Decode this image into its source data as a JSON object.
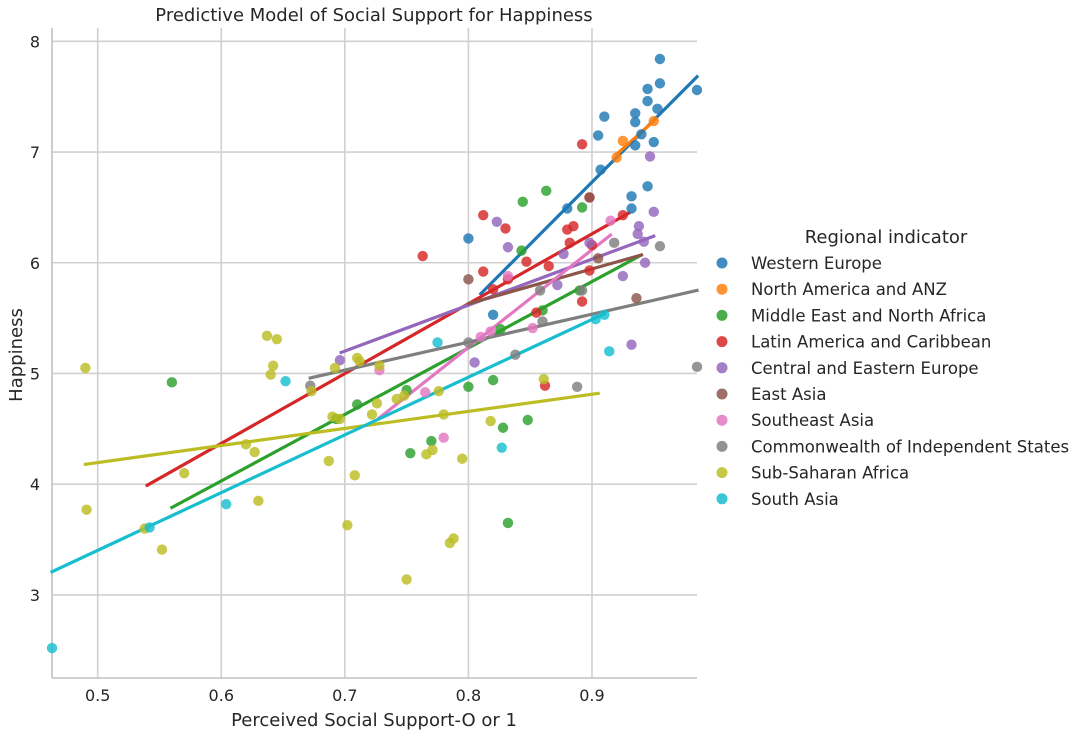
{
  "chart_data": {
    "type": "scatter",
    "title": "Predictive Model of Social Support for Happiness",
    "xlabel": "Perceived Social Support-O or 1",
    "ylabel": "Happiness",
    "xlim": [
      0.463,
      0.985
    ],
    "ylim": [
      2.25,
      8.12
    ],
    "x_ticks": [
      0.5,
      0.6,
      0.7,
      0.8,
      0.9
    ],
    "x_tick_labels": [
      "0.5",
      "0.6",
      "0.7",
      "0.8",
      "0.9"
    ],
    "y_ticks": [
      3,
      4,
      5,
      6,
      7,
      8
    ],
    "y_tick_labels": [
      "3",
      "4",
      "5",
      "6",
      "7",
      "8"
    ],
    "grid": true,
    "legend": {
      "title": "Regional indicator",
      "placement": "right"
    },
    "series": [
      {
        "name": "Western Europe",
        "color": "#1f77b4",
        "trend": [
          [
            0.81,
            5.72
          ],
          [
            0.985,
            7.68
          ]
        ],
        "points": [
          [
            0.955,
            7.84
          ],
          [
            0.955,
            7.62
          ],
          [
            0.945,
            7.57
          ],
          [
            0.945,
            7.46
          ],
          [
            0.985,
            7.56
          ],
          [
            0.953,
            7.39
          ],
          [
            0.935,
            7.35
          ],
          [
            0.91,
            7.32
          ],
          [
            0.935,
            7.27
          ],
          [
            0.905,
            7.15
          ],
          [
            0.94,
            7.16
          ],
          [
            0.95,
            7.09
          ],
          [
            0.935,
            7.06
          ],
          [
            0.907,
            6.84
          ],
          [
            0.945,
            6.69
          ],
          [
            0.932,
            6.6
          ],
          [
            0.932,
            6.49
          ],
          [
            0.88,
            6.49
          ],
          [
            0.8,
            6.22
          ],
          [
            0.82,
            5.53
          ]
        ]
      },
      {
        "name": "North America and ANZ",
        "color": "#ff7f0e",
        "trend": [
          [
            0.92,
            6.98
          ],
          [
            0.95,
            7.28
          ]
        ],
        "points": [
          [
            0.925,
            7.1
          ],
          [
            0.95,
            7.28
          ],
          [
            0.92,
            6.95
          ]
        ]
      },
      {
        "name": "Middle East and North Africa",
        "color": "#2ca02c",
        "trend": [
          [
            0.56,
            3.79
          ],
          [
            0.94,
            6.07
          ]
        ],
        "points": [
          [
            0.863,
            6.65
          ],
          [
            0.844,
            6.55
          ],
          [
            0.892,
            6.5
          ],
          [
            0.843,
            6.11
          ],
          [
            0.89,
            5.75
          ],
          [
            0.86,
            5.57
          ],
          [
            0.826,
            5.4
          ],
          [
            0.56,
            4.92
          ],
          [
            0.8,
            4.88
          ],
          [
            0.82,
            4.94
          ],
          [
            0.75,
            4.85
          ],
          [
            0.71,
            4.72
          ],
          [
            0.693,
            4.59
          ],
          [
            0.77,
            4.39
          ],
          [
            0.753,
            4.28
          ],
          [
            0.828,
            4.51
          ],
          [
            0.848,
            4.58
          ],
          [
            0.832,
            3.65
          ]
        ]
      },
      {
        "name": "Latin America and Caribbean",
        "color": "#d62728",
        "trend": [
          [
            0.54,
            3.99
          ],
          [
            0.93,
            6.45
          ]
        ],
        "points": [
          [
            0.892,
            7.07
          ],
          [
            0.898,
            6.59
          ],
          [
            0.812,
            6.43
          ],
          [
            0.83,
            6.31
          ],
          [
            0.88,
            6.3
          ],
          [
            0.885,
            6.33
          ],
          [
            0.925,
            6.43
          ],
          [
            0.882,
            6.18
          ],
          [
            0.9,
            6.16
          ],
          [
            0.763,
            6.06
          ],
          [
            0.847,
            6.01
          ],
          [
            0.865,
            5.97
          ],
          [
            0.812,
            5.92
          ],
          [
            0.898,
            5.93
          ],
          [
            0.832,
            5.85
          ],
          [
            0.82,
            5.76
          ],
          [
            0.855,
            5.55
          ],
          [
            0.892,
            5.65
          ],
          [
            0.862,
            4.89
          ]
        ]
      },
      {
        "name": "Central and Eastern Europe",
        "color": "#9467bd",
        "trend": [
          [
            0.697,
            5.19
          ],
          [
            0.95,
            6.24
          ]
        ],
        "points": [
          [
            0.947,
            6.96
          ],
          [
            0.95,
            6.46
          ],
          [
            0.823,
            6.37
          ],
          [
            0.938,
            6.33
          ],
          [
            0.937,
            6.26
          ],
          [
            0.942,
            6.19
          ],
          [
            0.898,
            6.18
          ],
          [
            0.832,
            6.14
          ],
          [
            0.877,
            6.08
          ],
          [
            0.943,
            6.0
          ],
          [
            0.925,
            5.88
          ],
          [
            0.872,
            5.8
          ],
          [
            0.696,
            5.12
          ],
          [
            0.805,
            5.1
          ],
          [
            0.932,
            5.26
          ]
        ]
      },
      {
        "name": "East Asia",
        "color": "#8c564b",
        "trend": [
          [
            0.8,
            5.63
          ],
          [
            0.94,
            6.07
          ]
        ],
        "points": [
          [
            0.898,
            6.59
          ],
          [
            0.8,
            5.85
          ],
          [
            0.936,
            5.68
          ],
          [
            0.905,
            6.04
          ]
        ]
      },
      {
        "name": "Southeast Asia",
        "color": "#e377c2",
        "trend": [
          [
            0.728,
            4.6
          ],
          [
            0.915,
            6.25
          ]
        ],
        "points": [
          [
            0.915,
            6.38
          ],
          [
            0.832,
            5.88
          ],
          [
            0.818,
            5.38
          ],
          [
            0.81,
            5.33
          ],
          [
            0.852,
            5.41
          ],
          [
            0.728,
            5.03
          ],
          [
            0.765,
            4.83
          ],
          [
            0.78,
            4.42
          ]
        ]
      },
      {
        "name": "Commonwealth of Independent States",
        "color": "#7f7f7f",
        "trend": [
          [
            0.672,
            4.96
          ],
          [
            0.985,
            5.75
          ]
        ],
        "points": [
          [
            0.918,
            6.18
          ],
          [
            0.955,
            6.15
          ],
          [
            0.858,
            5.75
          ],
          [
            0.892,
            5.75
          ],
          [
            0.86,
            5.47
          ],
          [
            0.8,
            5.28
          ],
          [
            0.838,
            5.17
          ],
          [
            0.672,
            4.89
          ],
          [
            0.888,
            4.88
          ],
          [
            0.985,
            5.06
          ]
        ]
      },
      {
        "name": "Sub-Saharan Africa",
        "color": "#bcbd22",
        "trend": [
          [
            0.49,
            4.18
          ],
          [
            0.905,
            4.82
          ]
        ],
        "points": [
          [
            0.49,
            5.05
          ],
          [
            0.637,
            5.34
          ],
          [
            0.645,
            5.31
          ],
          [
            0.642,
            5.07
          ],
          [
            0.64,
            4.99
          ],
          [
            0.692,
            5.05
          ],
          [
            0.71,
            5.14
          ],
          [
            0.712,
            5.11
          ],
          [
            0.728,
            5.07
          ],
          [
            0.673,
            4.84
          ],
          [
            0.742,
            4.77
          ],
          [
            0.748,
            4.8
          ],
          [
            0.776,
            4.84
          ],
          [
            0.69,
            4.61
          ],
          [
            0.696,
            4.59
          ],
          [
            0.722,
            4.63
          ],
          [
            0.726,
            4.73
          ],
          [
            0.78,
            4.63
          ],
          [
            0.818,
            4.57
          ],
          [
            0.861,
            4.95
          ],
          [
            0.57,
            4.1
          ],
          [
            0.62,
            4.36
          ],
          [
            0.627,
            4.29
          ],
          [
            0.687,
            4.21
          ],
          [
            0.766,
            4.27
          ],
          [
            0.771,
            4.31
          ],
          [
            0.795,
            4.23
          ],
          [
            0.708,
            4.08
          ],
          [
            0.491,
            3.77
          ],
          [
            0.63,
            3.85
          ],
          [
            0.538,
            3.6
          ],
          [
            0.552,
            3.41
          ],
          [
            0.702,
            3.63
          ],
          [
            0.788,
            3.51
          ],
          [
            0.785,
            3.47
          ],
          [
            0.75,
            3.14
          ]
        ]
      },
      {
        "name": "South Asia",
        "color": "#17becf",
        "trend": [
          [
            0.463,
            3.21
          ],
          [
            0.91,
            5.54
          ]
        ],
        "points": [
          [
            0.463,
            2.52
          ],
          [
            0.542,
            3.61
          ],
          [
            0.604,
            3.82
          ],
          [
            0.652,
            4.93
          ],
          [
            0.775,
            5.28
          ],
          [
            0.827,
            4.33
          ],
          [
            0.91,
            5.53
          ],
          [
            0.914,
            5.2
          ],
          [
            0.903,
            5.49
          ]
        ]
      }
    ]
  }
}
